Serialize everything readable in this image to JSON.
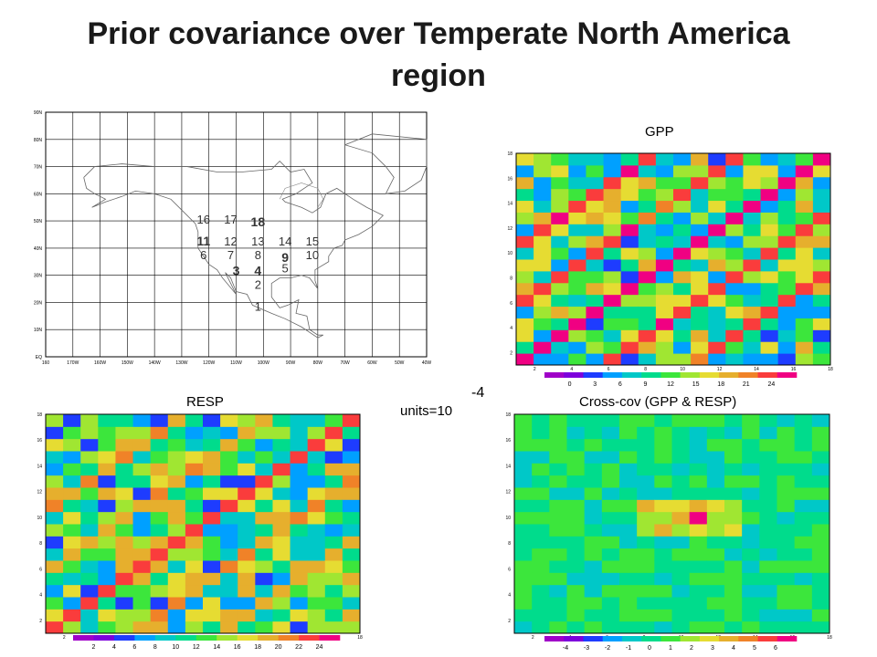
{
  "title": "Prior covariance over Temperate North America region",
  "panels": {
    "gpp_label": "GPP",
    "resp_label": "RESP",
    "cross_label": "Cross-cov (GPP & RESP)",
    "units_text": "units=10",
    "units_exp": "-4"
  },
  "map": {
    "lat_labels": [
      "EQ",
      "10N",
      "20N",
      "30N",
      "40N",
      "50N",
      "60N",
      "70N",
      "80N",
      "90N"
    ],
    "lon_labels": [
      "160",
      "170W",
      "160W",
      "150W",
      "140W",
      "130W",
      "120W",
      "110W",
      "100W",
      "90W",
      "80W",
      "70W",
      "60W",
      "50W",
      "40W"
    ],
    "regions": [
      {
        "id": "1",
        "lon": -102,
        "lat": 17
      },
      {
        "id": "2",
        "lon": -102,
        "lat": 25
      },
      {
        "id": "3",
        "lon": -110,
        "lat": 30
      },
      {
        "id": "4",
        "lon": -102,
        "lat": 30
      },
      {
        "id": "5",
        "lon": -92,
        "lat": 31
      },
      {
        "id": "6",
        "lon": -122,
        "lat": 36
      },
      {
        "id": "7",
        "lon": -112,
        "lat": 36
      },
      {
        "id": "8",
        "lon": -102,
        "lat": 36
      },
      {
        "id": "9",
        "lon": -92,
        "lat": 35
      },
      {
        "id": "10",
        "lon": -82,
        "lat": 36
      },
      {
        "id": "11",
        "lon": -122,
        "lat": 41
      },
      {
        "id": "12",
        "lon": -112,
        "lat": 41
      },
      {
        "id": "13",
        "lon": -102,
        "lat": 41
      },
      {
        "id": "14",
        "lon": -92,
        "lat": 41
      },
      {
        "id": "15",
        "lon": -82,
        "lat": 41
      },
      {
        "id": "16",
        "lon": -122,
        "lat": 49
      },
      {
        "id": "17",
        "lon": -112,
        "lat": 49
      },
      {
        "id": "18",
        "lon": -102,
        "lat": 48
      }
    ]
  },
  "chart_data": [
    {
      "type": "heatmap",
      "title": "GPP",
      "n": 18,
      "x_ticks": [
        2,
        4,
        6,
        8,
        10,
        12,
        14,
        16,
        18
      ],
      "y_ticks": [
        2,
        4,
        6,
        8,
        10,
        12,
        14,
        16,
        18
      ],
      "legend_ticks": [
        "0",
        "3",
        "6",
        "9",
        "12",
        "15",
        "18",
        "21",
        "24"
      ],
      "vmin": -3,
      "vmax": 27,
      "diag": 26,
      "off_diag": 24
    },
    {
      "type": "heatmap",
      "title": "RESP",
      "n": 18,
      "x_ticks": [
        2,
        4,
        6,
        8,
        10,
        12,
        14,
        16,
        18
      ],
      "y_ticks": [
        2,
        4,
        6,
        8,
        10,
        12,
        14,
        16,
        18
      ],
      "legend_ticks": [
        "2",
        "4",
        "6",
        "8",
        "10",
        "12",
        "14",
        "16",
        "18",
        "20",
        "22",
        "24"
      ],
      "vmin": 0,
      "vmax": 26,
      "diag": 23,
      "off_diag": 20
    },
    {
      "type": "heatmap",
      "title": "Cross-cov (GPP & RESP)",
      "n": 18,
      "x_ticks": [
        2,
        4,
        6,
        8,
        10,
        12,
        14,
        16,
        18
      ],
      "y_ticks": [
        2,
        4,
        6,
        8,
        10,
        12,
        14,
        16,
        18
      ],
      "legend_ticks": [
        "-4",
        "-3",
        "-2",
        "-1",
        "0",
        "1",
        "2",
        "3",
        "4",
        "5",
        "6"
      ],
      "vmin": -5,
      "vmax": 7,
      "hot_cell": [
        11,
        10
      ]
    }
  ],
  "colors": {
    "palette": [
      "#a000c8",
      "#7d00dc",
      "#1e3cff",
      "#00a0ff",
      "#00c8c8",
      "#00dc8c",
      "#3ce63c",
      "#a0e632",
      "#e6dc32",
      "#e6af2d",
      "#f08228",
      "#fa3c3c",
      "#f00082"
    ]
  }
}
